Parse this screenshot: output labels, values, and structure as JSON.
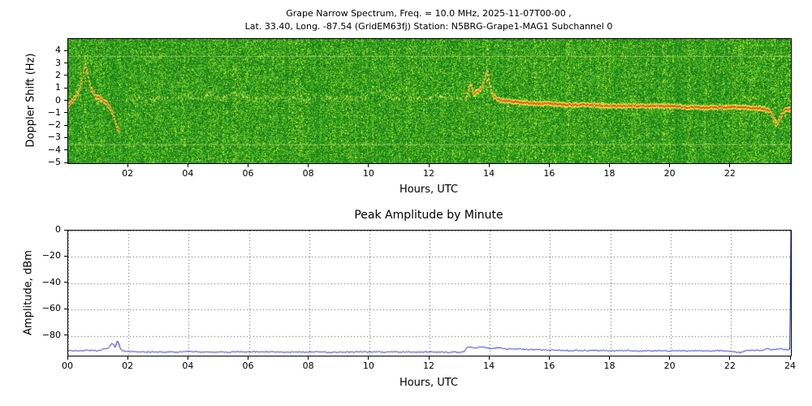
{
  "figure": {
    "title_line1": "Grape Narrow Spectrum, Freq. = 10.0 MHz, 2025-11-07T00-00 ,",
    "title_line2": "Lat. 33.40, Long. -87.54 (GridEM63fj) Station: N5BRG-Grape1-MAG1 Subchannel 0"
  },
  "chart_data": [
    {
      "type": "heatmap",
      "title": "",
      "xlabel": "Hours, UTC",
      "ylabel": "Doppler Shift (Hz)",
      "xlim": [
        0,
        24
      ],
      "ylim": [
        -5,
        5
      ],
      "xtick_hours": [
        2,
        4,
        6,
        8,
        10,
        12,
        14,
        16,
        18,
        20,
        22
      ],
      "xtick_labels": [
        "02",
        "04",
        "06",
        "08",
        "10",
        "12",
        "14",
        "16",
        "18",
        "20",
        "22"
      ],
      "yticks": [
        4,
        3,
        2,
        1,
        0,
        -1,
        -2,
        -3,
        -4,
        -5
      ],
      "background": "green spectral noise",
      "interference_lines_hz": [
        3.6,
        -3.5
      ],
      "trace_colors": {
        "core": "#e63c1e",
        "mid": "#ff9d00",
        "halo": "#ffff64",
        "faint": "#d8eb5a"
      },
      "trace_segments": [
        {
          "strength": "strong",
          "flare": [
            0.2,
            1.0
          ],
          "points": [
            [
              0,
              -0.3
            ],
            [
              0.15,
              0.1
            ],
            [
              0.3,
              0.6
            ],
            [
              0.45,
              1.6
            ],
            [
              0.55,
              3.0
            ],
            [
              0.65,
              2.0
            ],
            [
              0.75,
              1.0
            ],
            [
              0.9,
              0.4
            ],
            [
              1.05,
              0.2
            ],
            [
              1.2,
              0.0
            ],
            [
              1.35,
              -0.4
            ],
            [
              1.5,
              -1.2
            ],
            [
              1.6,
              -2.1
            ],
            [
              1.68,
              -2.4
            ]
          ]
        },
        {
          "strength": "faint",
          "points": [
            [
              1.9,
              0.1
            ],
            [
              2.3,
              0.2
            ],
            [
              2.7,
              0.0
            ],
            [
              3.1,
              0.3
            ],
            [
              3.5,
              0.1
            ],
            [
              3.9,
              0.4
            ],
            [
              4.3,
              0.2
            ],
            [
              4.7,
              0.5
            ],
            [
              5.1,
              0.2
            ],
            [
              5.5,
              0.6
            ],
            [
              5.9,
              0.3
            ],
            [
              6.3,
              0.1
            ],
            [
              6.7,
              0.4
            ],
            [
              7.1,
              0.2
            ],
            [
              7.5,
              0.3
            ],
            [
              7.9,
              0.1
            ],
            [
              8.3,
              0.3
            ],
            [
              8.7,
              0.2
            ],
            [
              9.1,
              0.4
            ],
            [
              9.5,
              0.2
            ],
            [
              9.9,
              0.3
            ],
            [
              10.3,
              0.9
            ],
            [
              10.6,
              0.4
            ],
            [
              11.0,
              0.2
            ],
            [
              11.4,
              0.3
            ],
            [
              11.8,
              0.2
            ],
            [
              12.2,
              0.4
            ],
            [
              12.6,
              0.3
            ],
            [
              13.0,
              0.2
            ],
            [
              13.2,
              0.3
            ]
          ]
        },
        {
          "strength": "strong",
          "flare": [
            13.2,
            14.3
          ],
          "points": [
            [
              13.2,
              0.2
            ],
            [
              13.35,
              1.4
            ],
            [
              13.45,
              0.6
            ],
            [
              13.6,
              0.8
            ],
            [
              13.75,
              1.2
            ],
            [
              13.9,
              2.4
            ],
            [
              14.0,
              1.2
            ],
            [
              14.1,
              0.4
            ],
            [
              14.3,
              0.1
            ],
            [
              14.6,
              0.0
            ],
            [
              15.0,
              -0.1
            ],
            [
              15.5,
              -0.2
            ],
            [
              16.0,
              -0.2
            ],
            [
              16.5,
              -0.3
            ],
            [
              17.0,
              -0.3
            ],
            [
              17.5,
              -0.3
            ],
            [
              18.0,
              -0.4
            ],
            [
              18.5,
              -0.4
            ],
            [
              19.0,
              -0.4
            ],
            [
              19.5,
              -0.4
            ],
            [
              20.0,
              -0.4
            ],
            [
              20.5,
              -0.5
            ],
            [
              21.0,
              -0.5
            ],
            [
              21.5,
              -0.5
            ],
            [
              22.0,
              -0.5
            ],
            [
              22.5,
              -0.5
            ],
            [
              23.0,
              -0.6
            ],
            [
              23.3,
              -0.8
            ],
            [
              23.5,
              -1.9
            ],
            [
              23.65,
              -1.2
            ],
            [
              23.8,
              -0.7
            ],
            [
              24.0,
              -0.6
            ]
          ]
        }
      ]
    },
    {
      "type": "line",
      "title": "Peak Amplitude by Minute",
      "xlabel": "Hours, UTC",
      "ylabel": "Amplitude, dBm",
      "xlim": [
        0,
        24
      ],
      "ylim": [
        -95,
        0
      ],
      "xtick_hours": [
        0,
        2,
        4,
        6,
        8,
        10,
        12,
        14,
        16,
        18,
        20,
        22,
        24
      ],
      "xtick_labels": [
        "00",
        "02",
        "04",
        "06",
        "08",
        "10",
        "12",
        "14",
        "16",
        "18",
        "20",
        "22",
        "24"
      ],
      "yticks": [
        0,
        -20,
        -40,
        -60,
        -80
      ],
      "grid": true,
      "line_color": "#0000cc",
      "series": [
        {
          "name": "peak_amplitude_dBm",
          "points": [
            [
              0,
              -91
            ],
            [
              0.3,
              -91.5
            ],
            [
              0.6,
              -91
            ],
            [
              0.9,
              -91.3
            ],
            [
              1.1,
              -90.5
            ],
            [
              1.3,
              -89.5
            ],
            [
              1.45,
              -85.5
            ],
            [
              1.55,
              -89
            ],
            [
              1.62,
              -83.5
            ],
            [
              1.75,
              -91
            ],
            [
              2,
              -92
            ],
            [
              3,
              -92.3
            ],
            [
              4,
              -92
            ],
            [
              5,
              -92.4
            ],
            [
              6,
              -92.1
            ],
            [
              7,
              -92.3
            ],
            [
              8,
              -92.2
            ],
            [
              9,
              -92.4
            ],
            [
              10,
              -92.1
            ],
            [
              11,
              -92.3
            ],
            [
              12,
              -92.2
            ],
            [
              13,
              -92.4
            ],
            [
              13.15,
              -92
            ],
            [
              13.25,
              -88
            ],
            [
              13.5,
              -89
            ],
            [
              13.7,
              -88.5
            ],
            [
              14,
              -89.5
            ],
            [
              14.3,
              -89
            ],
            [
              14.6,
              -90
            ],
            [
              15,
              -90
            ],
            [
              15.5,
              -90.5
            ],
            [
              16,
              -90.8
            ],
            [
              16.5,
              -91
            ],
            [
              17,
              -91.2
            ],
            [
              17.5,
              -91
            ],
            [
              18,
              -91.3
            ],
            [
              18.5,
              -91.1
            ],
            [
              19,
              -91.4
            ],
            [
              19.5,
              -91.2
            ],
            [
              20,
              -91.4
            ],
            [
              20.5,
              -91.2
            ],
            [
              21,
              -91.4
            ],
            [
              21.5,
              -91.3
            ],
            [
              22,
              -91.5
            ],
            [
              22.3,
              -92.8
            ],
            [
              22.5,
              -91.2
            ],
            [
              22.8,
              -90.8
            ],
            [
              23,
              -91
            ],
            [
              23.2,
              -89.8
            ],
            [
              23.4,
              -90.6
            ],
            [
              23.6,
              -89.8
            ],
            [
              23.8,
              -90.5
            ],
            [
              23.95,
              -90.2
            ],
            [
              24,
              0
            ]
          ]
        }
      ]
    }
  ]
}
